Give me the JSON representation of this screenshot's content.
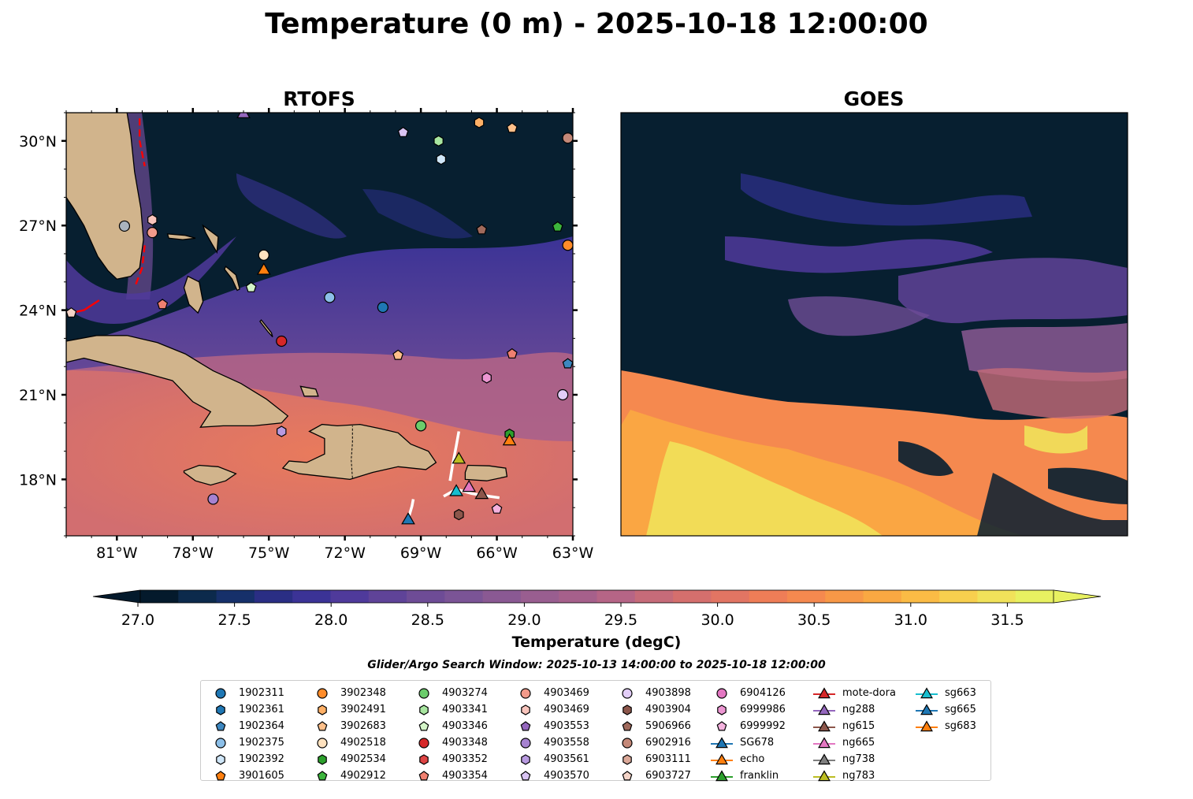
{
  "title": "Temperature (0 m) - 2025-10-18 12:00:00",
  "panels": [
    {
      "title": "RTOFS"
    },
    {
      "title": "GOES"
    }
  ],
  "colorbar": {
    "label": "Temperature (degC)",
    "ticks": [
      "27.0",
      "27.5",
      "28.0",
      "28.5",
      "29.0",
      "29.5",
      "30.0",
      "30.5",
      "31.0",
      "31.5"
    ],
    "colors": [
      "#041a2c",
      "#0c2a4c",
      "#16306a",
      "#2a2e84",
      "#3b3396",
      "#4f3a9b",
      "#5f4398",
      "#6e4c96",
      "#7b5496",
      "#8a5993",
      "#995e90",
      "#a6608b",
      "#b66586",
      "#c66b79",
      "#d56f6d",
      "#e27563",
      "#ef7d57",
      "#f5894f",
      "#f89847",
      "#faa842",
      "#fbbb45",
      "#f8cf4e",
      "#f1e25a",
      "#e8f161"
    ]
  },
  "search_window": "Glider/Argo Search Window: 2025-10-13 14:00:00 to 2025-10-18 12:00:00",
  "colors": {
    "land": "#d1b48c",
    "ocean_dark": "#071f30",
    "track": "#ff0000"
  },
  "chart_data": {
    "type": "map",
    "xlim": [
      -83,
      -63
    ],
    "ylim": [
      16,
      31
    ],
    "x_ticks": [
      {
        "v": -81,
        "label": "81°W"
      },
      {
        "v": -78,
        "label": "78°W"
      },
      {
        "v": -75,
        "label": "75°W"
      },
      {
        "v": -72,
        "label": "72°W"
      },
      {
        "v": -69,
        "label": "69°W"
      },
      {
        "v": -66,
        "label": "66°W"
      },
      {
        "v": -63,
        "label": "63°W"
      }
    ],
    "y_ticks": [
      {
        "v": 18,
        "label": "18°N"
      },
      {
        "v": 21,
        "label": "21°N"
      },
      {
        "v": 24,
        "label": "24°N"
      },
      {
        "v": 27,
        "label": "27°N"
      },
      {
        "v": 30,
        "label": "30°N"
      }
    ],
    "legend_entries": [
      {
        "name": "1902311",
        "marker": "circle",
        "color": "#1f77b4"
      },
      {
        "name": "1902361",
        "marker": "hexagon",
        "color": "#1f77b4"
      },
      {
        "name": "1902364",
        "marker": "pentagon",
        "color": "#3d87c0"
      },
      {
        "name": "1902375",
        "marker": "circle",
        "color": "#8cbfe8"
      },
      {
        "name": "1902392",
        "marker": "hexagon",
        "color": "#cfe6f8"
      },
      {
        "name": "3901605",
        "marker": "pentagon",
        "color": "#ff7f0e"
      },
      {
        "name": "3902348",
        "marker": "circle",
        "color": "#ff8c2a"
      },
      {
        "name": "3902491",
        "marker": "hexagon",
        "color": "#ffb066"
      },
      {
        "name": "3902683",
        "marker": "pentagon",
        "color": "#ffc08a"
      },
      {
        "name": "4902518",
        "marker": "circle",
        "color": "#ffe2bf"
      },
      {
        "name": "4902534",
        "marker": "hexagon",
        "color": "#2ca02c"
      },
      {
        "name": "4902912",
        "marker": "pentagon",
        "color": "#3cb43c"
      },
      {
        "name": "4903274",
        "marker": "circle",
        "color": "#6bcc6b"
      },
      {
        "name": "4903341",
        "marker": "hexagon",
        "color": "#a8e6a0"
      },
      {
        "name": "4903346",
        "marker": "pentagon",
        "color": "#d4f5c8"
      },
      {
        "name": "4903348",
        "marker": "circle",
        "color": "#d62728"
      },
      {
        "name": "4903352",
        "marker": "hexagon",
        "color": "#de4444"
      },
      {
        "name": "4903354",
        "marker": "pentagon",
        "color": "#f08070"
      },
      {
        "name": "4903469",
        "marker": "circle",
        "color": "#f29a8a"
      },
      {
        "name": "4903469",
        "marker": "hexagon",
        "color": "#f8c4bc"
      },
      {
        "name": "4903553",
        "marker": "pentagon",
        "color": "#9467bd"
      },
      {
        "name": "4903558",
        "marker": "circle",
        "color": "#a682d0"
      },
      {
        "name": "4903561",
        "marker": "hexagon",
        "color": "#b89ae0"
      },
      {
        "name": "4903570",
        "marker": "pentagon",
        "color": "#d9c4f3"
      },
      {
        "name": "4903898",
        "marker": "circle",
        "color": "#e2cdf7"
      },
      {
        "name": "4903904",
        "marker": "hexagon",
        "color": "#8c564b"
      },
      {
        "name": "5906966",
        "marker": "pentagon",
        "color": "#a06a5c"
      },
      {
        "name": "6902916",
        "marker": "circle",
        "color": "#c48878"
      },
      {
        "name": "6903111",
        "marker": "hexagon",
        "color": "#dba898"
      },
      {
        "name": "6903727",
        "marker": "pentagon",
        "color": "#f4d4c8"
      },
      {
        "name": "6904126",
        "marker": "circle",
        "color": "#e377c2"
      },
      {
        "name": "6999986",
        "marker": "hexagon",
        "color": "#ec96d2"
      },
      {
        "name": "6999992",
        "marker": "pentagon",
        "color": "#f4b2de"
      },
      {
        "name": "SG678",
        "marker": "triangle",
        "color": "#1f77b4"
      },
      {
        "name": "echo",
        "marker": "triangle",
        "color": "#ff7f0e"
      },
      {
        "name": "franklin",
        "marker": "triangle",
        "color": "#2ca02c"
      },
      {
        "name": "mote-dora",
        "marker": "triangle",
        "color": "#d62728"
      },
      {
        "name": "ng288",
        "marker": "triangle",
        "color": "#9467bd"
      },
      {
        "name": "ng615",
        "marker": "triangle",
        "color": "#8c564b"
      },
      {
        "name": "ng665",
        "marker": "triangle",
        "color": "#e377c2"
      },
      {
        "name": "ng738",
        "marker": "triangle",
        "color": "#7f7f7f"
      },
      {
        "name": "ng783",
        "marker": "triangle",
        "color": "#bcbd22"
      },
      {
        "name": "sg663",
        "marker": "triangle",
        "color": "#17becf"
      },
      {
        "name": "sg665",
        "marker": "triangle",
        "color": "#1f77b4"
      },
      {
        "name": "sg683",
        "marker": "triangle",
        "color": "#ff7f0e"
      }
    ],
    "floats": [
      {
        "lon": -80.7,
        "lat": 26.98,
        "marker": "circle",
        "color": "#aab4be"
      },
      {
        "lon": -79.6,
        "lat": 27.2,
        "marker": "hexagon",
        "color": "#f8c4bc"
      },
      {
        "lon": -79.6,
        "lat": 26.75,
        "marker": "circle",
        "color": "#f29a8a"
      },
      {
        "lon": -82.8,
        "lat": 23.9,
        "marker": "pentagon",
        "color": "#f4d4c8"
      },
      {
        "lon": -79.2,
        "lat": 24.2,
        "marker": "pentagon",
        "color": "#f08070"
      },
      {
        "lon": -75.2,
        "lat": 25.95,
        "marker": "circle",
        "color": "#ffe2bf"
      },
      {
        "lon": -75.7,
        "lat": 24.8,
        "marker": "pentagon",
        "color": "#d4f5c8"
      },
      {
        "lon": -72.6,
        "lat": 24.45,
        "marker": "circle",
        "color": "#8cbfe8"
      },
      {
        "lon": -70.5,
        "lat": 24.1,
        "marker": "circle",
        "color": "#1f77b4"
      },
      {
        "lon": -74.5,
        "lat": 22.9,
        "marker": "circle",
        "color": "#d62728"
      },
      {
        "lon": -69.9,
        "lat": 22.4,
        "marker": "pentagon",
        "color": "#ffc08a"
      },
      {
        "lon": -65.4,
        "lat": 22.45,
        "marker": "pentagon",
        "color": "#f08070"
      },
      {
        "lon": -66.4,
        "lat": 21.6,
        "marker": "hexagon",
        "color": "#ec96d2"
      },
      {
        "lon": -63.2,
        "lat": 22.1,
        "marker": "pentagon",
        "color": "#3d87c0"
      },
      {
        "lon": -63.4,
        "lat": 21.0,
        "marker": "circle",
        "color": "#e2cdf7"
      },
      {
        "lon": -74.5,
        "lat": 19.7,
        "marker": "hexagon",
        "color": "#b89ae0"
      },
      {
        "lon": -69.0,
        "lat": 19.9,
        "marker": "circle",
        "color": "#6bcc6b"
      },
      {
        "lon": -65.5,
        "lat": 19.6,
        "marker": "hexagon",
        "color": "#2ca02c"
      },
      {
        "lon": -77.2,
        "lat": 17.3,
        "marker": "circle",
        "color": "#a682d0"
      },
      {
        "lon": -67.5,
        "lat": 16.75,
        "marker": "hexagon",
        "color": "#8c564b"
      },
      {
        "lon": -66.0,
        "lat": 16.95,
        "marker": "pentagon",
        "color": "#f4b2de"
      },
      {
        "lon": -69.7,
        "lat": 30.3,
        "marker": "pentagon",
        "color": "#d9c4f3"
      },
      {
        "lon": -68.3,
        "lat": 30.0,
        "marker": "hexagon",
        "color": "#a8e6a0"
      },
      {
        "lon": -68.2,
        "lat": 29.35,
        "marker": "hexagon",
        "color": "#cfe6f8"
      },
      {
        "lon": -66.7,
        "lat": 30.65,
        "marker": "hexagon",
        "color": "#ffb066"
      },
      {
        "lon": -65.4,
        "lat": 30.45,
        "marker": "pentagon",
        "color": "#ffc08a"
      },
      {
        "lon": -63.2,
        "lat": 30.1,
        "marker": "circle",
        "color": "#c48878"
      },
      {
        "lon": -66.6,
        "lat": 26.85,
        "marker": "pentagon",
        "color": "#a06a5c"
      },
      {
        "lon": -63.6,
        "lat": 26.95,
        "marker": "pentagon",
        "color": "#3cb43c"
      },
      {
        "lon": -63.2,
        "lat": 26.3,
        "marker": "circle",
        "color": "#ff8c2a"
      }
    ],
    "gliders": [
      {
        "name": "ng288",
        "lon": -76.0,
        "lat": 31.0,
        "color": "#9467bd"
      },
      {
        "name": "echo",
        "lon": -75.2,
        "lat": 25.45,
        "color": "#ff7f0e"
      },
      {
        "name": "ng783",
        "lon": -67.5,
        "lat": 18.75,
        "color": "#bcbd22"
      },
      {
        "name": "sg683",
        "lon": -65.5,
        "lat": 19.4,
        "color": "#ff7f0e"
      },
      {
        "name": "sg663",
        "lon": -67.6,
        "lat": 17.6,
        "color": "#17becf"
      },
      {
        "name": "ng665",
        "lon": -67.1,
        "lat": 17.75,
        "color": "#e377c2"
      },
      {
        "name": "ng615",
        "lon": -66.6,
        "lat": 17.5,
        "color": "#8c564b"
      },
      {
        "name": "SG678",
        "lon": -69.5,
        "lat": 16.6,
        "color": "#1f77b4"
      }
    ]
  }
}
